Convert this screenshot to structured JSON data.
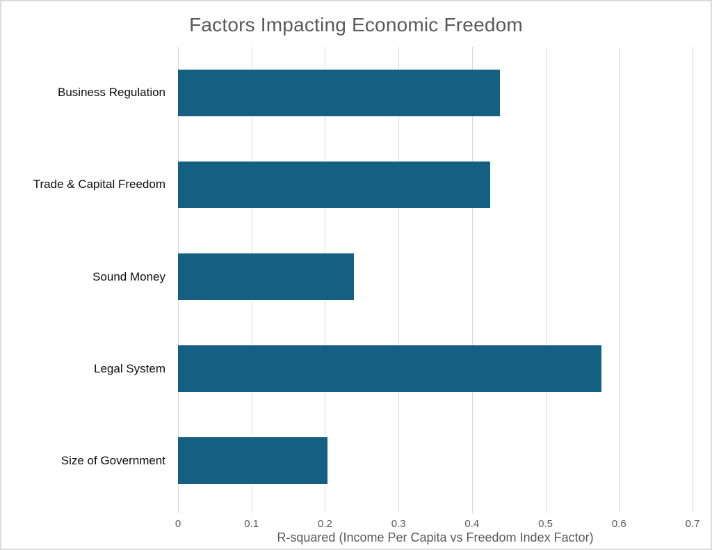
{
  "title": "Factors Impacting Economic Freedom",
  "colors": {
    "bar": "#156082",
    "title_text": "#595959",
    "axis_text": "#595959",
    "category_text": "#0d0d0d",
    "gridline": "#d9d9d9",
    "background": "#ffffff",
    "border": "#dcdcdc"
  },
  "chart_data": {
    "type": "bar",
    "orientation": "horizontal",
    "title": "Factors Impacting Economic Freedom",
    "categories": [
      "Business Regulation",
      "Trade & Capital Freedom",
      "Sound Money",
      "Legal System",
      "Size of Government"
    ],
    "values": [
      0.438,
      0.425,
      0.239,
      0.576,
      0.203
    ],
    "xlabel": "R-squared (Income Per Capita vs Freedom Index Factor)",
    "ylabel": "",
    "xlim": [
      0,
      0.7
    ],
    "xticks": [
      0,
      0.1,
      0.2,
      0.3,
      0.4,
      0.5,
      0.6,
      0.7
    ],
    "xtick_labels": [
      "0",
      "0.1",
      "0.2",
      "0.3",
      "0.4",
      "0.5",
      "0.6",
      "0.7"
    ],
    "grid": true,
    "legend": false
  }
}
